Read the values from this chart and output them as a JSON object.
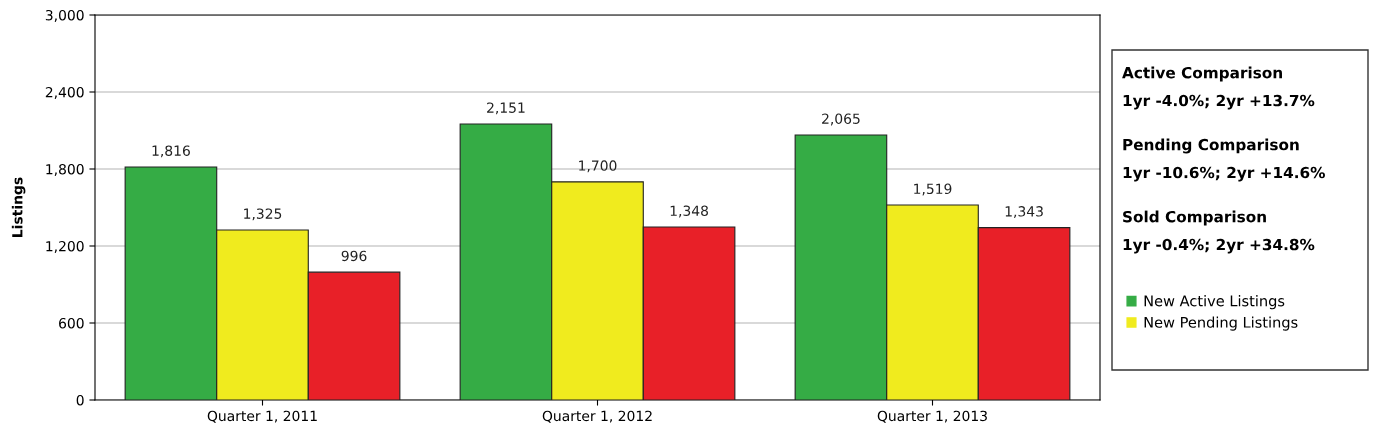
{
  "chart_data": {
    "type": "bar",
    "ylabel": "Listings",
    "categories": [
      "Quarter 1, 2011",
      "Quarter 1, 2012",
      "Quarter 1, 2013"
    ],
    "series": [
      {
        "name": "New Active Listings",
        "color": "#35ac45",
        "values": [
          1816,
          2151,
          2065
        ],
        "value_labels": [
          "1,816",
          "2,151",
          "2,065"
        ]
      },
      {
        "name": "New Pending Listings",
        "color": "#f0eb1e",
        "values": [
          1325,
          1700,
          1519
        ],
        "value_labels": [
          "1,325",
          "1,700",
          "1,519"
        ]
      },
      {
        "color": "#e82028",
        "values": [
          996,
          1348,
          1343
        ],
        "value_labels": [
          "996",
          "1,348",
          "1,343"
        ]
      }
    ],
    "ylim": [
      0,
      3000
    ],
    "yticks": [
      0,
      {
        "value": 600,
        "label": "600"
      },
      {
        "value": 1200,
        "label": "1,200"
      },
      {
        "value": 1800,
        "label": "1,800"
      },
      {
        "value": 2400,
        "label": "2,400"
      },
      {
        "value": 3000,
        "label": "3,000"
      }
    ],
    "grid": "y",
    "legend": "right",
    "annotations": [
      "Active Comparison",
      "1yr -4.0%; 2yr +13.7%",
      "Pending Comparison",
      "1yr -10.6%; 2yr +14.6%",
      "Sold Comparison",
      "1yr -0.4%; 2yr +34.8%"
    ]
  }
}
